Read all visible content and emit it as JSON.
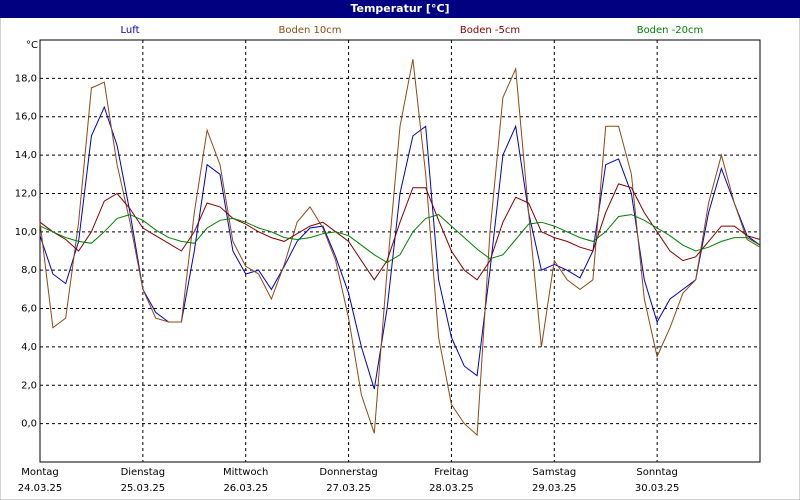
{
  "chart_data": {
    "type": "line",
    "title": "Temperatur [°C]",
    "y_unit": "°C",
    "legend": "top",
    "grid": true,
    "x": [
      0,
      3,
      6,
      9,
      12,
      15,
      18,
      21,
      24,
      27,
      30,
      33,
      36,
      39,
      42,
      45,
      48,
      51,
      54,
      57,
      60,
      63,
      66,
      69,
      72,
      75,
      78,
      81,
      84,
      87,
      90,
      93,
      96,
      99,
      102,
      105,
      108,
      111,
      114,
      117,
      120,
      123,
      126,
      129,
      132,
      135,
      138,
      141,
      144,
      147,
      150,
      153,
      156,
      159,
      162,
      165,
      168
    ],
    "xlim": [
      0,
      168
    ],
    "xticks": [
      {
        "value": 0,
        "label": "Montag",
        "date": "24.03.25"
      },
      {
        "value": 24,
        "label": "Dienstag",
        "date": "25.03.25"
      },
      {
        "value": 48,
        "label": "Mittwoch",
        "date": "26.03.25"
      },
      {
        "value": 72,
        "label": "Donnerstag",
        "date": "27.03.25"
      },
      {
        "value": 96,
        "label": "Freitag",
        "date": "28.03.25"
      },
      {
        "value": 120,
        "label": "Samstag",
        "date": "29.03.25"
      },
      {
        "value": 144,
        "label": "Sonntag",
        "date": "30.03.25"
      }
    ],
    "ylim": [
      -2,
      20
    ],
    "yticks": [
      {
        "value": 0,
        "label": "0,0"
      },
      {
        "value": 2,
        "label": "2,0"
      },
      {
        "value": 4,
        "label": "4,0"
      },
      {
        "value": 6,
        "label": "6,0"
      },
      {
        "value": 8,
        "label": "8,0"
      },
      {
        "value": 10,
        "label": "10,0"
      },
      {
        "value": 12,
        "label": "12,0"
      },
      {
        "value": 14,
        "label": "14,0"
      },
      {
        "value": 16,
        "label": "16,0"
      },
      {
        "value": 18,
        "label": "18,0"
      }
    ],
    "series": [
      {
        "name": "Luft",
        "color": "#0000c0",
        "values": [
          9.8,
          7.8,
          7.3,
          9.5,
          15,
          16.5,
          14.5,
          11,
          7,
          5.8,
          5.3,
          5.3,
          9,
          13.5,
          13,
          9,
          7.8,
          8,
          7,
          8.2,
          9.5,
          10.2,
          10.3,
          8.7,
          6.8,
          4,
          1.8,
          6,
          12,
          15,
          15.5,
          7.5,
          4.5,
          3,
          2.5,
          8,
          14,
          15.5,
          11,
          8,
          8.3,
          8,
          7.6,
          9,
          13.5,
          13.8,
          12,
          7.5,
          5.3,
          6.5,
          7,
          7.5,
          11,
          13.3,
          11.5,
          9.8,
          9.3
        ]
      },
      {
        "name": "Boden 10cm",
        "color": "#8b4a14",
        "values": [
          10.5,
          5,
          5.5,
          10.5,
          17.5,
          17.8,
          13.5,
          10.5,
          7,
          5.5,
          5.3,
          5.3,
          11,
          15.3,
          13.5,
          9.5,
          8.2,
          7.8,
          6.5,
          8.3,
          10.5,
          11.3,
          10.2,
          8.5,
          5.5,
          1.5,
          -0.5,
          8,
          15.5,
          19,
          13,
          4.5,
          1,
          0,
          -0.6,
          10,
          17,
          18.5,
          11,
          4,
          8.5,
          7.5,
          7,
          7.5,
          15.5,
          15.5,
          13,
          6.5,
          3.5,
          5,
          6.8,
          7.5,
          11.5,
          14,
          11.5,
          9.6,
          9.2
        ]
      },
      {
        "name": "Boden -5cm",
        "color": "#800000",
        "values": [
          10.5,
          10,
          9.6,
          9,
          10,
          11.6,
          12,
          11.2,
          10.2,
          9.8,
          9.4,
          9,
          10,
          11.5,
          11.3,
          10.7,
          10.4,
          10,
          9.7,
          9.5,
          9.9,
          10.3,
          10.5,
          10,
          9.5,
          8.5,
          7.5,
          8.5,
          10.5,
          12.3,
          12.3,
          10.6,
          9,
          8,
          7.5,
          8.5,
          10.5,
          11.8,
          11.5,
          10,
          9.7,
          9.5,
          9.2,
          9,
          11,
          12.5,
          12.3,
          11,
          10,
          9,
          8.5,
          8.7,
          9.5,
          10.3,
          10.3,
          9.8,
          9.6
        ]
      },
      {
        "name": "Boden -20cm",
        "color": "#008000",
        "values": [
          10.3,
          10,
          9.7,
          9.5,
          9.4,
          10,
          10.7,
          10.9,
          10.6,
          10.1,
          9.7,
          9.5,
          9.4,
          10.2,
          10.6,
          10.7,
          10.5,
          10.2,
          10,
          9.7,
          9.6,
          9.7,
          9.9,
          10,
          9.8,
          9.3,
          8.8,
          8.4,
          8.8,
          10,
          10.7,
          10.9,
          10.3,
          9.7,
          9.1,
          8.6,
          8.8,
          9.6,
          10.4,
          10.5,
          10.3,
          10,
          9.7,
          9.5,
          10,
          10.8,
          10.9,
          10.6,
          10.2,
          9.8,
          9.3,
          9,
          9.2,
          9.5,
          9.7,
          9.7,
          9.3
        ]
      }
    ]
  }
}
